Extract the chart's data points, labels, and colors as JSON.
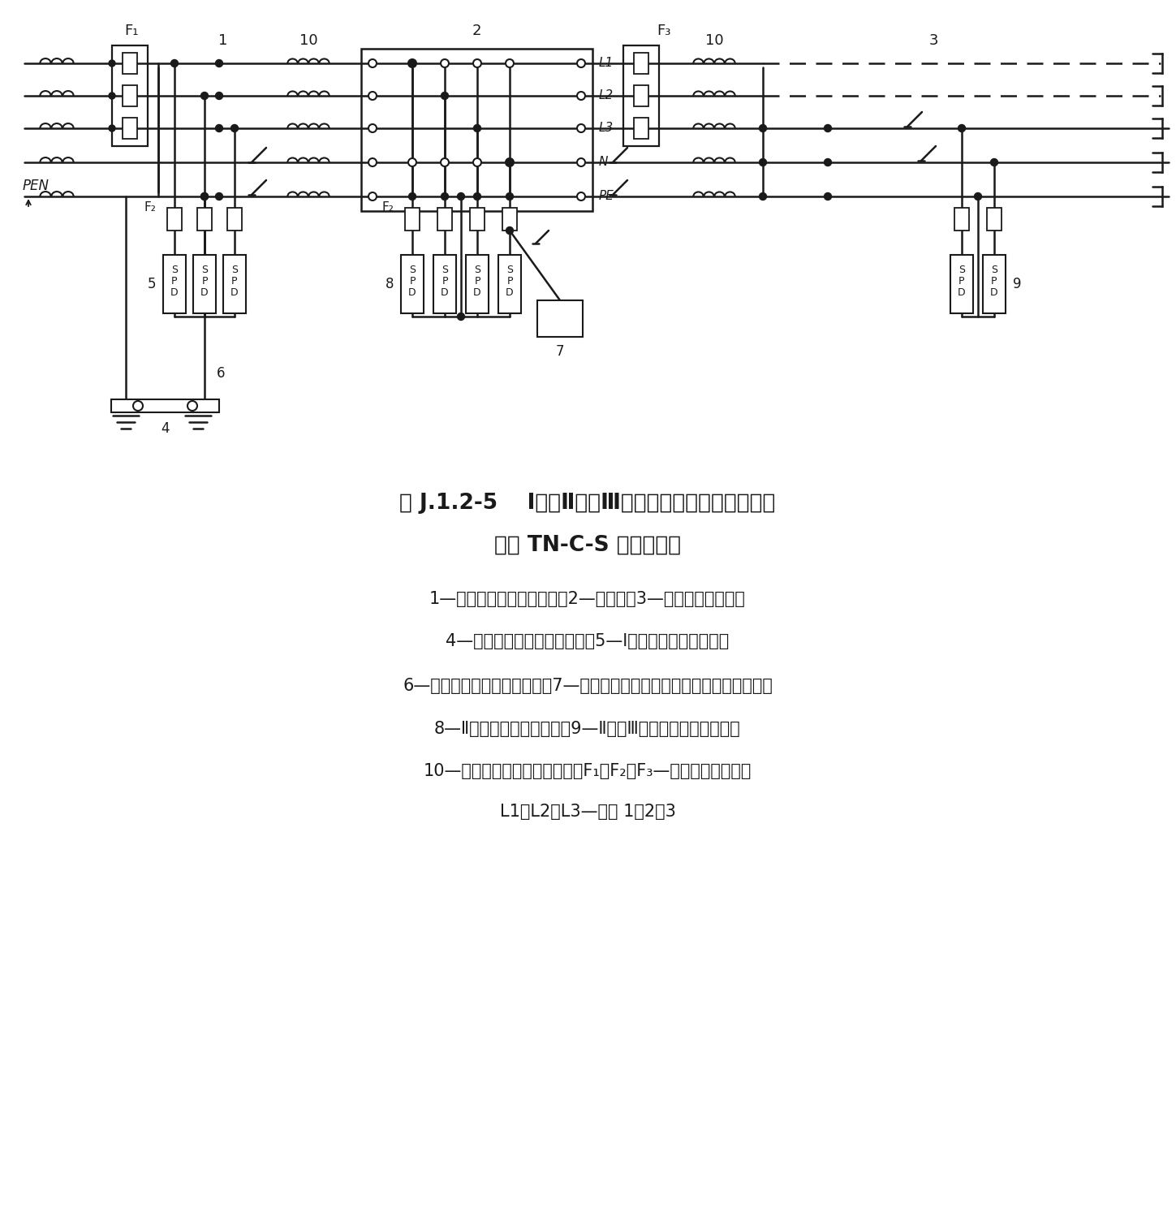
{
  "title_line1": "图 J.1.2-5    Ⅰ级、Ⅱ级和Ⅲ级试验的电涌保护器的安装",
  "title_line2": "（以 TN-C-S 系统为例）",
  "desc_line1": "1—电气装置的电源进户处；2—配电笱；3—送出的配电线路；",
  "desc_line2": "4—总接地端或总接地连接带；5—Ⅰ级试验的电涌保护器；",
  "desc_line3": "6—电涌保护器的接地连接线；7—需要被电涌保护器保护的固定安装的设备；",
  "desc_line4": "8—Ⅱ级试验的电涌保护器；9—Ⅱ级或Ⅲ级试验的电涌保护器；",
  "desc_line5": "10—去耦器件或配电线路长度；F₁、F₂、F₃—过电涌保护电器；",
  "desc_line6": "L1、L2、L3—相线 1，2，3",
  "background_color": "#ffffff",
  "line_color": "#1a1a1a"
}
